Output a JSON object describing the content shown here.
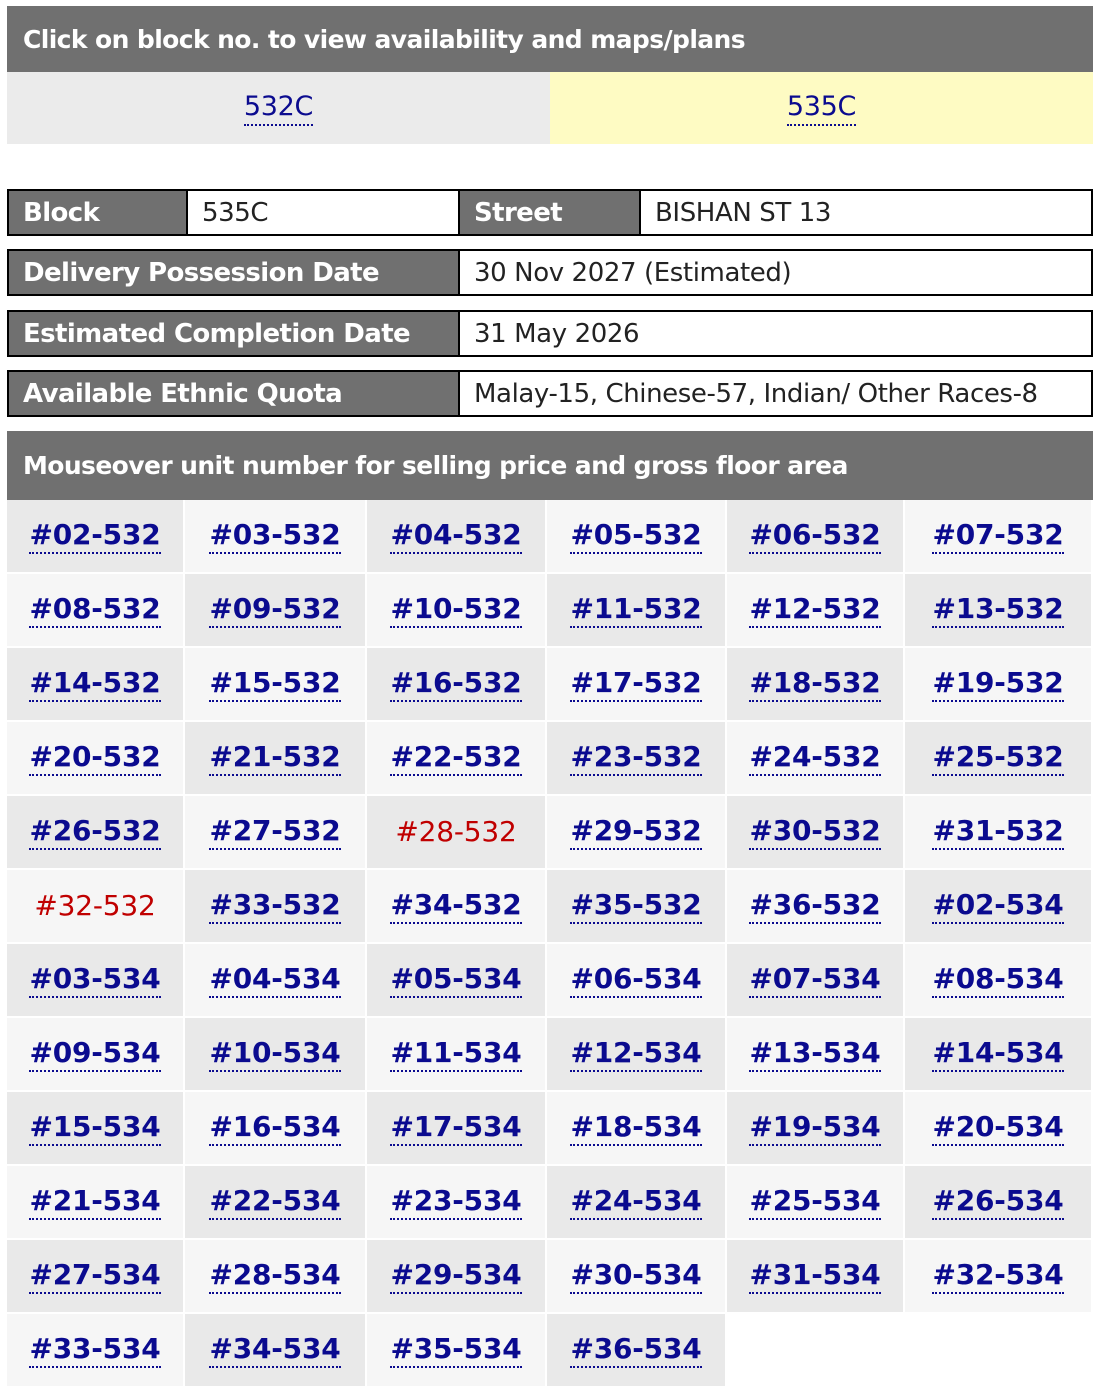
{
  "header": {
    "block_header": "Click on block no. to view availability and maps/plans"
  },
  "blocks": [
    {
      "label": "532C",
      "active": false
    },
    {
      "label": "535C",
      "active": true
    }
  ],
  "info": {
    "block_label": "Block",
    "block_value": "535C",
    "street_label": "Street",
    "street_value": "BISHAN ST 13",
    "delivery_label": "Delivery Possession Date",
    "delivery_value": "30 Nov 2027 (Estimated)",
    "completion_label": "Estimated Completion Date",
    "completion_value": "31 May 2026",
    "quota_label": "Available Ethnic Quota",
    "quota_value": "Malay-15, Chinese-57, Indian/ Other Races-8"
  },
  "units_header": "Mouseover unit number for selling price and gross floor area",
  "units": [
    {
      "label": "#02-532",
      "sold": false
    },
    {
      "label": "#03-532",
      "sold": false
    },
    {
      "label": "#04-532",
      "sold": false
    },
    {
      "label": "#05-532",
      "sold": false
    },
    {
      "label": "#06-532",
      "sold": false
    },
    {
      "label": "#07-532",
      "sold": false
    },
    {
      "label": "#08-532",
      "sold": false
    },
    {
      "label": "#09-532",
      "sold": false
    },
    {
      "label": "#10-532",
      "sold": false
    },
    {
      "label": "#11-532",
      "sold": false
    },
    {
      "label": "#12-532",
      "sold": false
    },
    {
      "label": "#13-532",
      "sold": false
    },
    {
      "label": "#14-532",
      "sold": false
    },
    {
      "label": "#15-532",
      "sold": false
    },
    {
      "label": "#16-532",
      "sold": false
    },
    {
      "label": "#17-532",
      "sold": false
    },
    {
      "label": "#18-532",
      "sold": false
    },
    {
      "label": "#19-532",
      "sold": false
    },
    {
      "label": "#20-532",
      "sold": false
    },
    {
      "label": "#21-532",
      "sold": false
    },
    {
      "label": "#22-532",
      "sold": false
    },
    {
      "label": "#23-532",
      "sold": false
    },
    {
      "label": "#24-532",
      "sold": false
    },
    {
      "label": "#25-532",
      "sold": false
    },
    {
      "label": "#26-532",
      "sold": false
    },
    {
      "label": "#27-532",
      "sold": false
    },
    {
      "label": "#28-532",
      "sold": true
    },
    {
      "label": "#29-532",
      "sold": false
    },
    {
      "label": "#30-532",
      "sold": false
    },
    {
      "label": "#31-532",
      "sold": false
    },
    {
      "label": "#32-532",
      "sold": true
    },
    {
      "label": "#33-532",
      "sold": false
    },
    {
      "label": "#34-532",
      "sold": false
    },
    {
      "label": "#35-532",
      "sold": false
    },
    {
      "label": "#36-532",
      "sold": false
    },
    {
      "label": "#02-534",
      "sold": false
    },
    {
      "label": "#03-534",
      "sold": false
    },
    {
      "label": "#04-534",
      "sold": false
    },
    {
      "label": "#05-534",
      "sold": false
    },
    {
      "label": "#06-534",
      "sold": false
    },
    {
      "label": "#07-534",
      "sold": false
    },
    {
      "label": "#08-534",
      "sold": false
    },
    {
      "label": "#09-534",
      "sold": false
    },
    {
      "label": "#10-534",
      "sold": false
    },
    {
      "label": "#11-534",
      "sold": false
    },
    {
      "label": "#12-534",
      "sold": false
    },
    {
      "label": "#13-534",
      "sold": false
    },
    {
      "label": "#14-534",
      "sold": false
    },
    {
      "label": "#15-534",
      "sold": false
    },
    {
      "label": "#16-534",
      "sold": false
    },
    {
      "label": "#17-534",
      "sold": false
    },
    {
      "label": "#18-534",
      "sold": false
    },
    {
      "label": "#19-534",
      "sold": false
    },
    {
      "label": "#20-534",
      "sold": false
    },
    {
      "label": "#21-534",
      "sold": false
    },
    {
      "label": "#22-534",
      "sold": false
    },
    {
      "label": "#23-534",
      "sold": false
    },
    {
      "label": "#24-534",
      "sold": false
    },
    {
      "label": "#25-534",
      "sold": false
    },
    {
      "label": "#26-534",
      "sold": false
    },
    {
      "label": "#27-534",
      "sold": false
    },
    {
      "label": "#28-534",
      "sold": false
    },
    {
      "label": "#29-534",
      "sold": false
    },
    {
      "label": "#30-534",
      "sold": false
    },
    {
      "label": "#31-534",
      "sold": false
    },
    {
      "label": "#32-534",
      "sold": false
    },
    {
      "label": "#33-534",
      "sold": false
    },
    {
      "label": "#34-534",
      "sold": false
    },
    {
      "label": "#35-534",
      "sold": false
    },
    {
      "label": "#36-534",
      "sold": false
    }
  ],
  "colors": {
    "header_bg": "#707070",
    "link_blue": "#0b0b8f",
    "sold_red": "#c00000",
    "active_tab_bg": "#fefbc3",
    "inactive_tab_bg": "#ebebeb"
  }
}
